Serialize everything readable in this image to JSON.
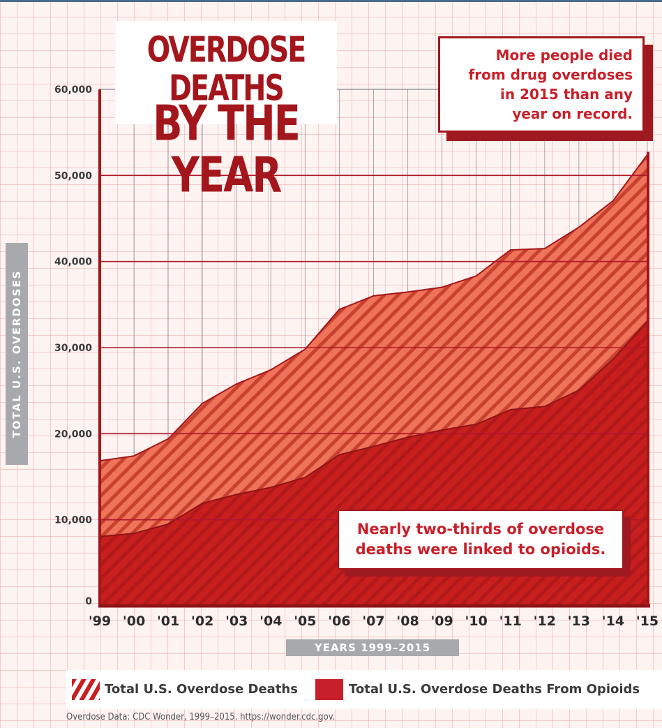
{
  "title": {
    "line1": "OVERDOSE DEATHS",
    "line2": "BY THE YEAR"
  },
  "callouts": {
    "top": [
      "More people died",
      "from drug overdoses",
      "in 2015 than any",
      "year on record."
    ],
    "bottom": [
      "Nearly two-thirds of overdose",
      "deaths were linked to opioids."
    ]
  },
  "legend": {
    "total": "Total U.S. Overdose Deaths",
    "opioids": "Total U.S. Overdose Deaths From Opioids"
  },
  "source": "Overdose Data: CDC Wonder, 1999–2015. https://wonder.cdc.gov.",
  "colors": {
    "accent": "#a3161c",
    "total_fill": "#ee7358",
    "total_stripe": "#c8412f",
    "opioid_fill": "#c81e1e",
    "opioid_stripe": "#b01a1a",
    "axis_label": "#a7a9ac"
  },
  "chart_data": {
    "type": "area",
    "xlabel": "YEARS 1999–2015",
    "ylabel": "TOTAL U.S. OVERDOSES",
    "categories": [
      "'99",
      "'00",
      "'01",
      "'02",
      "'03",
      "'04",
      "'05",
      "'06",
      "'07",
      "'08",
      "'09",
      "'10",
      "'11",
      "'12",
      "'13",
      "'14",
      "'15"
    ],
    "ylim": [
      0,
      60000
    ],
    "yticks": [
      0,
      10000,
      20000,
      30000,
      40000,
      50000,
      60000
    ],
    "ytick_labels": [
      "0",
      "10,000",
      "20,000",
      "30,000",
      "40,000",
      "50,000",
      "60,000"
    ],
    "grid": true,
    "legend_position": "bottom",
    "series": [
      {
        "name": "Total U.S. Overdose Deaths",
        "values": [
          16849,
          17415,
          19394,
          23518,
          25785,
          27424,
          29813,
          34425,
          36010,
          36450,
          37004,
          38329,
          41340,
          41502,
          43982,
          47055,
          52404
        ]
      },
      {
        "name": "Total U.S. Overdose Deaths From Opioids",
        "values": [
          8050,
          8407,
          9496,
          11920,
          12940,
          13756,
          14918,
          17545,
          18516,
          19582,
          20422,
          21089,
          22784,
          23166,
          25052,
          28647,
          33091
        ]
      }
    ]
  }
}
